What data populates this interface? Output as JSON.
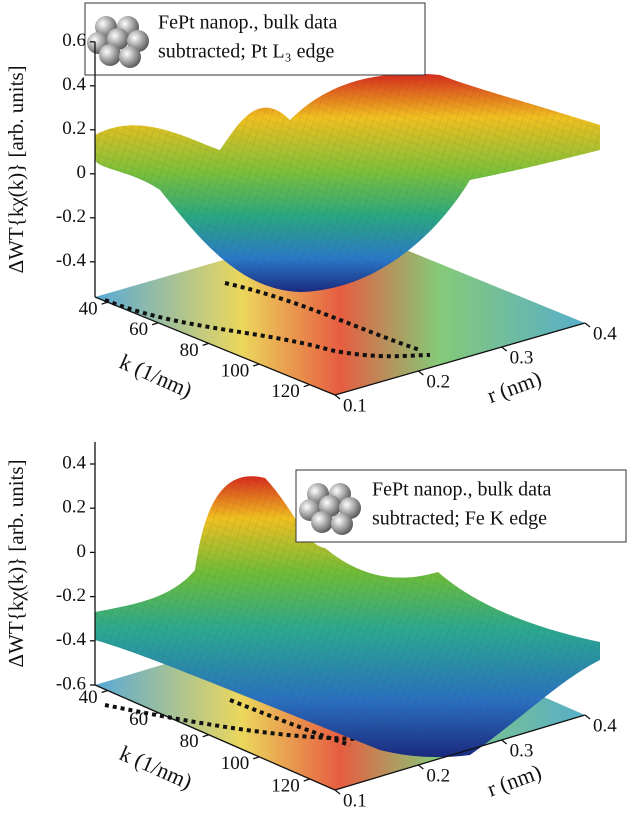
{
  "chart_data": [
    {
      "type": "surface3d",
      "legend_lines": [
        "FePt nanop., bulk data",
        "subtracted; Pt L₃ edge"
      ],
      "zlabel": "ΔWT{kχ(k)} [arb. units]",
      "xlabel": "k (1/nm)",
      "ylabel": "r (nm)",
      "xlim": [
        35,
        130
      ],
      "xticks": [
        40,
        60,
        80,
        100,
        120
      ],
      "ylim": [
        0.1,
        0.4
      ],
      "yticks": [
        0.1,
        0.2,
        0.3,
        0.4
      ],
      "zlim": [
        -0.56,
        0.6
      ],
      "zticks": [
        0.6,
        0.4,
        0.2,
        0,
        -0.2,
        -0.4
      ]
    },
    {
      "type": "surface3d",
      "legend_lines": [
        "FePt nanop., bulk data",
        "subtracted; Fe K edge"
      ],
      "zlabel": "ΔWT{kχ(k)} [arb. units]",
      "xlabel": "k (1/nm)",
      "ylabel": "r (nm)",
      "xlim": [
        35,
        130
      ],
      "xticks": [
        40,
        60,
        80,
        100,
        120
      ],
      "ylim": [
        0.1,
        0.4
      ],
      "yticks": [
        0.1,
        0.2,
        0.3,
        0.4
      ],
      "zlim": [
        -0.6,
        0.5
      ],
      "zticks": [
        0.4,
        0.2,
        0,
        -0.2,
        -0.4,
        -0.6
      ]
    }
  ]
}
